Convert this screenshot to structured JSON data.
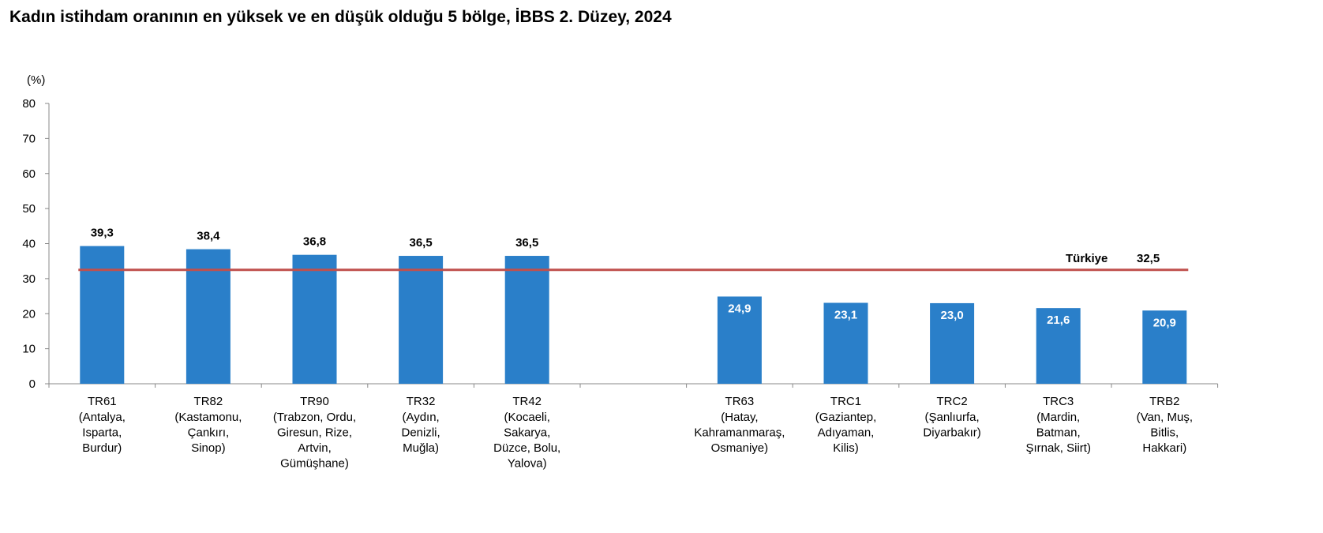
{
  "chart_data": {
    "type": "bar",
    "title": "Kadın istihdam oranının en yüksek ve en düşük olduğu 5 bölge, İBBS 2. Düzey, 2024",
    "ylabel": "(%)",
    "ylim": [
      0,
      80
    ],
    "yticks": [
      0,
      10,
      20,
      30,
      40,
      50,
      60,
      70,
      80
    ],
    "grid": false,
    "bar_color": "#2a7fc9",
    "categories": [
      {
        "code": "TR61",
        "lines": [
          "(Antalya,",
          "Isparta,",
          "Burdur)"
        ]
      },
      {
        "code": "TR82",
        "lines": [
          "(Kastamonu,",
          "Çankırı,",
          "Sinop)"
        ]
      },
      {
        "code": "TR90",
        "lines": [
          "(Trabzon, Ordu,",
          "Giresun, Rize,",
          "Artvin,",
          "Gümüşhane)"
        ]
      },
      {
        "code": "TR32",
        "lines": [
          "(Aydın,",
          "Denizli,",
          "Muğla)"
        ]
      },
      {
        "code": "TR42",
        "lines": [
          "(Kocaeli,",
          "Sakarya,",
          "Düzce, Bolu,",
          "Yalova)"
        ]
      },
      null,
      {
        "code": "TR63",
        "lines": [
          "(Hatay,",
          "Kahramanmaraş,",
          "Osmaniye)"
        ]
      },
      {
        "code": "TRC1",
        "lines": [
          "(Gaziantep,",
          "Adıyaman,",
          "Kilis)"
        ]
      },
      {
        "code": "TRC2",
        "lines": [
          "(Şanlıurfa,",
          "Diyarbakır)"
        ]
      },
      {
        "code": "TRC3",
        "lines": [
          "(Mardin,",
          "Batman,",
          "Şırnak, Siirt)"
        ]
      },
      {
        "code": "TRB2",
        "lines": [
          "(Van, Muş,",
          "Bitlis,",
          "Hakkari)"
        ]
      }
    ],
    "values": [
      39.3,
      38.4,
      36.8,
      36.5,
      36.5,
      null,
      24.9,
      23.1,
      23.0,
      21.6,
      20.9
    ],
    "value_labels": [
      "39,3",
      "38,4",
      "36,8",
      "36,5",
      "36,5",
      null,
      "24,9",
      "23,1",
      "23,0",
      "21,6",
      "20,9"
    ],
    "reference_line": {
      "name": "Türkiye",
      "value": 32.5,
      "label": "32,5",
      "color": "#c0504d"
    }
  }
}
